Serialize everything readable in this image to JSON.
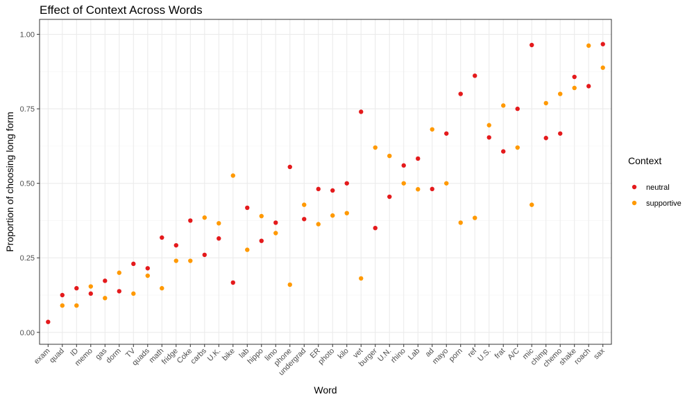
{
  "chart_data": {
    "type": "scatter",
    "title": "Effect of Context Across Words",
    "xlabel": "Word",
    "ylabel": "Proportion of choosing long form",
    "ylim": [
      -0.04,
      1.05
    ],
    "yticks": [
      0.0,
      0.25,
      0.5,
      0.75,
      1.0
    ],
    "ytick_labels": [
      "0.00",
      "0.25",
      "0.50",
      "0.75",
      "1.00"
    ],
    "grid": true,
    "legend": {
      "title": "Context",
      "position": "right"
    },
    "categories": [
      "exam",
      "quad",
      "ID",
      "memo",
      "gas",
      "dorm",
      "TV",
      "quads",
      "math",
      "fridge",
      "Coke",
      "carbs",
      "U.K.",
      "bike",
      "lab",
      "hippo",
      "limo",
      "phone",
      "undergrad",
      "ER",
      "photo",
      "kilo",
      "vet",
      "burger",
      "U.N.",
      "rhino",
      "Lab",
      "ad",
      "mayo",
      "porn",
      "ref",
      "U.S.",
      "frat",
      "A/C",
      "mic",
      "chimp",
      "chemo",
      "shake",
      "roach",
      "sax"
    ],
    "series": [
      {
        "name": "neutral",
        "color": "#e41a1c",
        "values": [
          0.035,
          0.125,
          0.148,
          0.13,
          0.173,
          0.138,
          0.23,
          0.215,
          0.318,
          0.292,
          0.375,
          0.26,
          0.315,
          0.167,
          0.418,
          0.307,
          0.368,
          0.555,
          0.38,
          0.481,
          0.476,
          0.5,
          0.74,
          0.35,
          0.455,
          0.56,
          0.583,
          0.481,
          0.667,
          0.8,
          0.861,
          0.654,
          0.607,
          0.75,
          0.964,
          0.652,
          0.667,
          0.857,
          0.826,
          0.967
        ]
      },
      {
        "name": "supportive",
        "color": "#ff9900",
        "values": [
          null,
          0.09,
          0.09,
          0.154,
          0.115,
          0.2,
          0.13,
          0.19,
          0.148,
          0.24,
          0.24,
          0.385,
          0.366,
          0.526,
          0.277,
          0.39,
          0.333,
          0.16,
          0.428,
          0.363,
          0.392,
          0.4,
          0.181,
          0.62,
          0.592,
          0.5,
          0.48,
          0.681,
          0.5,
          0.368,
          0.384,
          0.695,
          0.761,
          0.62,
          0.428,
          0.769,
          0.8,
          0.82,
          0.962,
          0.888
        ]
      }
    ]
  }
}
